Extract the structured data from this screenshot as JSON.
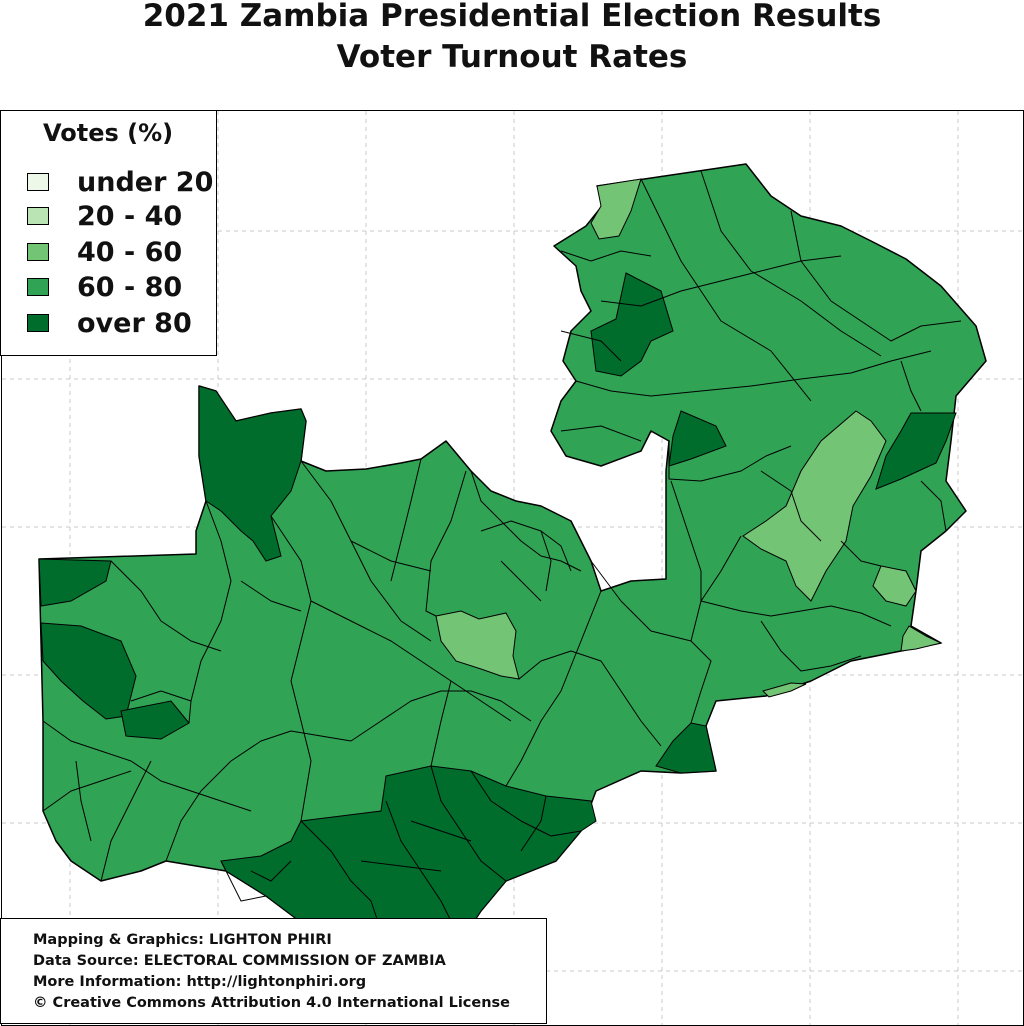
{
  "title": {
    "line1": "2021 Zambia Presidential Election Results",
    "line2": "Voter Turnout Rates"
  },
  "legend": {
    "title": "Votes (%)",
    "items": [
      {
        "label": "under 20",
        "color": "#edf8e9"
      },
      {
        "label": "20 - 40",
        "color": "#bae4b3"
      },
      {
        "label": "40 - 60",
        "color": "#74c476"
      },
      {
        "label": "60 - 80",
        "color": "#31a354"
      },
      {
        "label": "over 80",
        "color": "#006d2c"
      }
    ]
  },
  "credits": [
    "Mapping & Graphics: LIGHTON PHIRI",
    "Data Source: ELECTORAL COMMISSION OF ZAMBIA",
    "More Information: http://lightonphiri.org",
    "© Creative Commons Attribution 4.0 International License"
  ],
  "map": {
    "country": "Zambia",
    "base_color": "#31a354",
    "regions_40_60": [
      "north-tip",
      "northeast-corridor",
      "central-patch",
      "east-patch",
      "eastern-strip",
      "southern-strip"
    ],
    "regions_over_80": [
      "northwest-lobe",
      "west-corner",
      "west-band",
      "west-small",
      "north-central",
      "north-small",
      "central-east",
      "northeast-block",
      "east-tip",
      "southern-block"
    ]
  }
}
